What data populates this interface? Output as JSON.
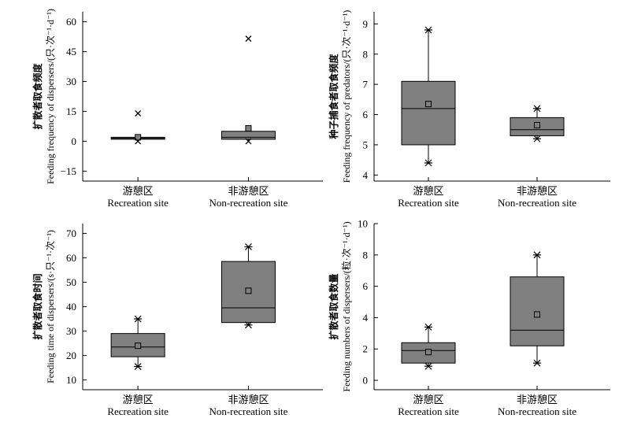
{
  "colors": {
    "box_fill": "#808080",
    "axis": "#000000",
    "background": "#ffffff"
  },
  "chart_data": [
    {
      "type": "box",
      "ylabel_cn": "扩散者取食频度",
      "ylabel_en": "Feeding frequency of dispersers/(只·次⁻¹·d⁻¹)",
      "yticks": [
        -15,
        0,
        15,
        30,
        45,
        60
      ],
      "ylim": [
        -20,
        65
      ],
      "categories": [
        {
          "cn": "游憩区",
          "en": "Recreation site"
        },
        {
          "cn": "非游憩区",
          "en": "Non-recreation site"
        }
      ],
      "series": [
        {
          "min": 0,
          "q1": 1,
          "median": 1.5,
          "q3": 2,
          "max": 2,
          "mean": 2,
          "outliers": [
            {
              "value": 14,
              "marker": "x"
            },
            {
              "value": 0,
              "marker": "x"
            }
          ]
        },
        {
          "min": 0,
          "q1": 1,
          "median": 2,
          "q3": 5,
          "max": 5,
          "mean": 6.5,
          "outliers": [
            {
              "value": 51.5,
              "marker": "x"
            },
            {
              "value": 0,
              "marker": "x"
            }
          ]
        }
      ]
    },
    {
      "type": "box",
      "ylabel_cn": "种子捕食者取食频度",
      "ylabel_en": "Feeding frequency of predators/(只·次⁻¹·d⁻¹)",
      "yticks": [
        4,
        5,
        6,
        7,
        8,
        9
      ],
      "ylim": [
        3.8,
        9.4
      ],
      "categories": [
        {
          "cn": "游憩区",
          "en": "Recreation site"
        },
        {
          "cn": "非游憩区",
          "en": "Non-recreation site"
        }
      ],
      "series": [
        {
          "min": 4.4,
          "q1": 5.0,
          "median": 6.2,
          "q3": 7.1,
          "max": 8.8,
          "mean": 6.35,
          "outliers": []
        },
        {
          "min": 5.2,
          "q1": 5.3,
          "median": 5.5,
          "q3": 5.9,
          "max": 6.2,
          "mean": 5.65,
          "outliers": []
        }
      ]
    },
    {
      "type": "box",
      "ylabel_cn": "扩散者取食时间",
      "ylabel_en": "Feeding time of dispersers/(s·只⁻¹·次⁻¹)",
      "yticks": [
        10,
        20,
        30,
        40,
        50,
        60,
        70
      ],
      "ylim": [
        6,
        74
      ],
      "categories": [
        {
          "cn": "游憩区",
          "en": "Recreation site"
        },
        {
          "cn": "非游憩区",
          "en": "Non-recreation site"
        }
      ],
      "series": [
        {
          "min": 15.5,
          "q1": 19.5,
          "median": 23.5,
          "q3": 29,
          "max": 35,
          "mean": 24,
          "outliers": []
        },
        {
          "min": 32.5,
          "q1": 33.5,
          "median": 39.5,
          "q3": 58.5,
          "max": 64.5,
          "mean": 46.5,
          "outliers": []
        }
      ]
    },
    {
      "type": "box",
      "ylabel_cn": "扩散者取食数量",
      "ylabel_en": "Feeding numbers of dispersers/(粒·次⁻¹·d⁻¹)",
      "yticks": [
        0,
        2,
        4,
        6,
        8,
        10
      ],
      "ylim": [
        -0.6,
        10
      ],
      "categories": [
        {
          "cn": "游憩区",
          "en": "Recreation site"
        },
        {
          "cn": "非游憩区",
          "en": "Non-recreation site"
        }
      ],
      "series": [
        {
          "min": 0.9,
          "q1": 1.1,
          "median": 1.9,
          "q3": 2.4,
          "max": 3.4,
          "mean": 1.8,
          "outliers": []
        },
        {
          "min": 1.1,
          "q1": 2.2,
          "median": 3.2,
          "q3": 6.6,
          "max": 8.0,
          "mean": 4.2,
          "outliers": []
        }
      ]
    }
  ]
}
